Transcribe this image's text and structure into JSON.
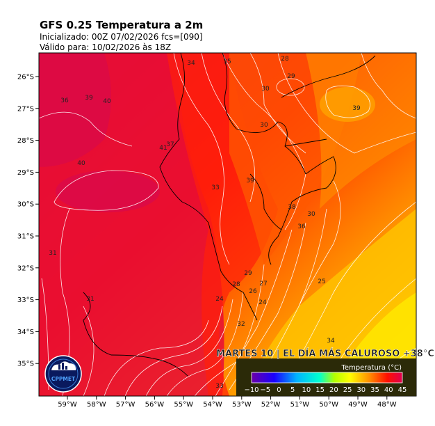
{
  "header": {
    "title": "GFS 0.25 Temperatura a 2m",
    "init_line": "Inicializado: 00Z  07/02/2026    fcs=[090]",
    "valid_line": "Válido para: 10/02/2026 às 18Z"
  },
  "map": {
    "lat_ticks": [
      "26°S",
      "27°S",
      "28°S",
      "29°S",
      "30°S",
      "31°S",
      "32°S",
      "33°S",
      "34°S",
      "35°S"
    ],
    "lon_ticks": [
      "59°W",
      "58°W",
      "57°W",
      "56°W",
      "55°W",
      "54°W",
      "53°W",
      "52°W",
      "51°W",
      "50°W",
      "49°W",
      "48°W"
    ],
    "contour_labels": [
      "34",
      "35",
      "28",
      "29",
      "30",
      "36",
      "39",
      "40",
      "40",
      "41",
      "37",
      "33",
      "39",
      "38",
      "36",
      "30",
      "31",
      "29",
      "28",
      "27",
      "26",
      "25",
      "24",
      "24",
      "32",
      "34",
      "33",
      "39",
      "30",
      "31"
    ]
  },
  "banner": {
    "headline": "MARTES 10 | EL DÍA MÁS CALUROSO +38°C",
    "colorbar_title": "Temperatura (°C)",
    "colorbar_ticks": [
      "−10",
      "−5",
      "0",
      "5",
      "10",
      "15",
      "20",
      "25",
      "30",
      "35",
      "40",
      "45"
    ]
  },
  "logo": {
    "name": "CPPMET"
  },
  "colors": {
    "hot": "#dd0a3e",
    "red": "#ff1a0a",
    "orange": "#ff7a00",
    "yellow": "#ffe600",
    "banner_bg": "#2b2a08"
  }
}
